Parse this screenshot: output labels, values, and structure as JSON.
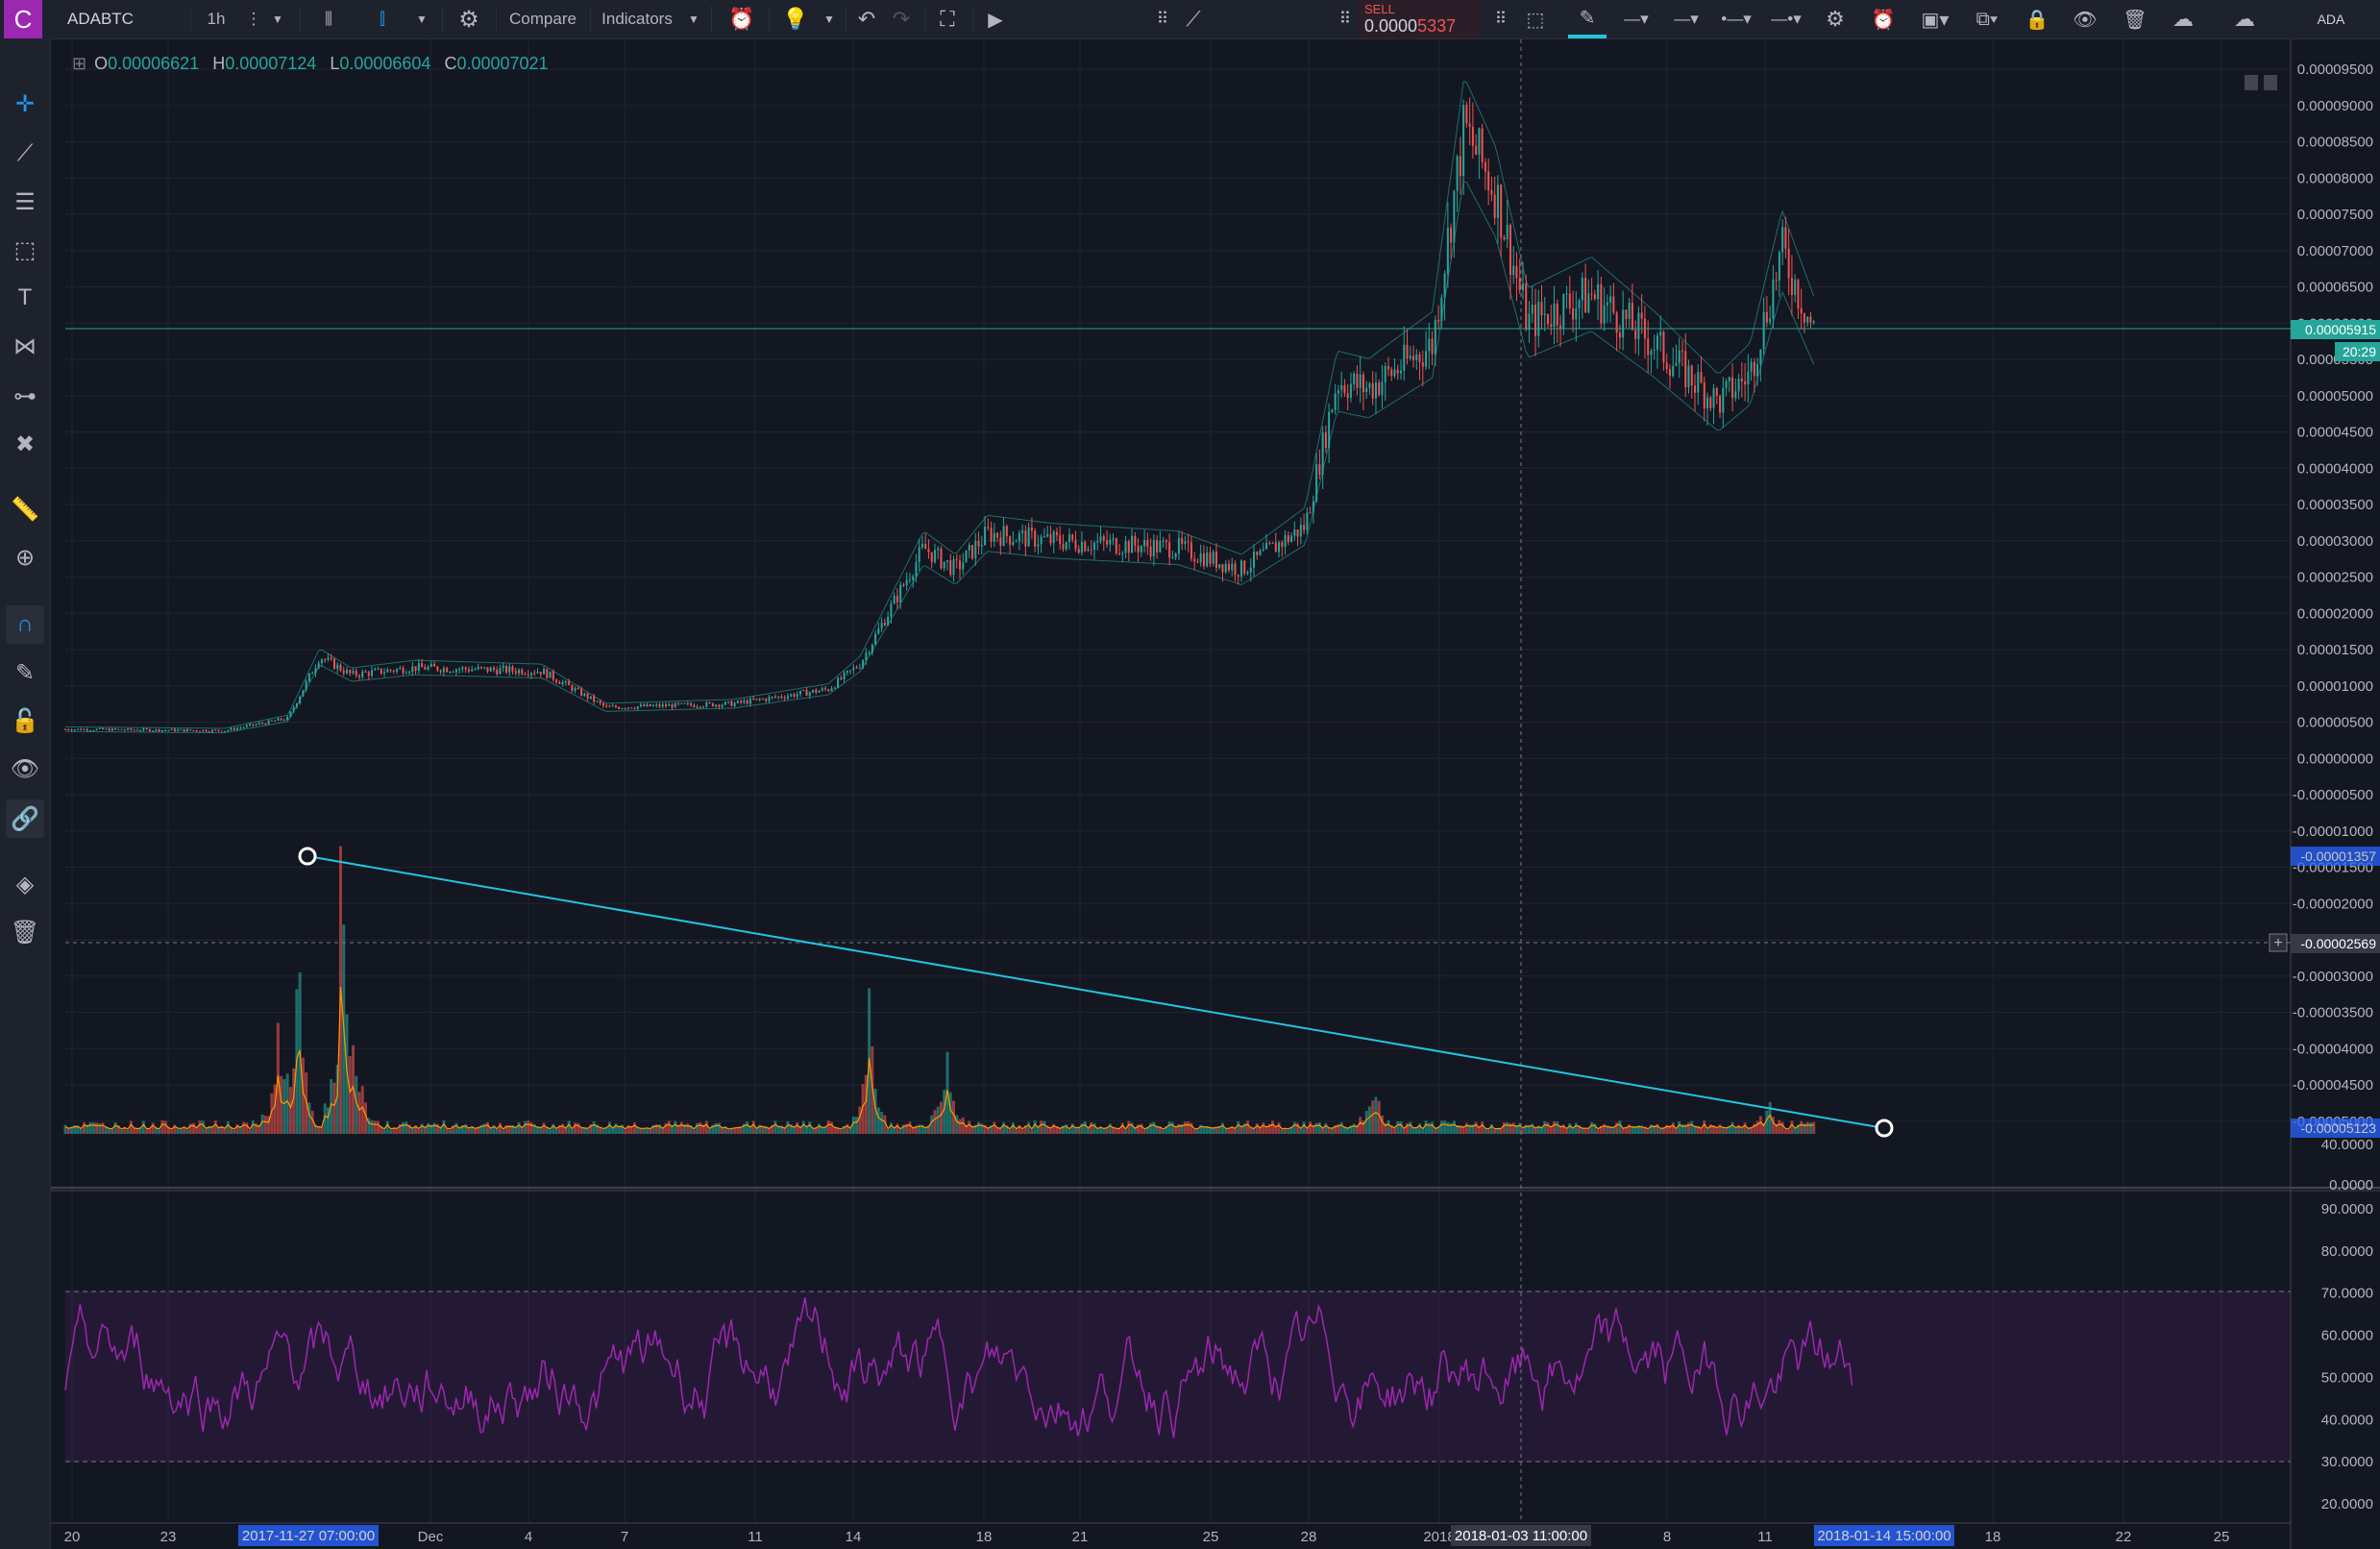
{
  "toolbar": {
    "logo": "C",
    "symbol": "ADABTC",
    "interval": "1h",
    "compare_label": "Compare",
    "indicators_label": "Indicators",
    "sell_label": "SELL",
    "sell_price_main": "0.0000",
    "sell_price_tail": "5337",
    "currency_label": "ADA"
  },
  "ohlc": {
    "o_label": "O",
    "o_value": "0.00006621",
    "h_label": "H",
    "h_value": "0.00007124",
    "l_label": "L",
    "l_value": "0.00006604",
    "c_label": "C",
    "c_value": "0.00007021"
  },
  "price_axis": {
    "ticks": [
      "0.00009500",
      "0.00009000",
      "0.00008500",
      "0.00008000",
      "0.00007500",
      "0.00007000",
      "0.00006500",
      "0.00006000",
      "0.00005500",
      "0.00005000",
      "0.00004500",
      "0.00004000",
      "0.00003500",
      "0.00003000",
      "0.00002500",
      "0.00002000",
      "0.00001500",
      "0.00001000",
      "0.00000500",
      "0.00000000",
      "-0.00000500",
      "-0.00001000",
      "-0.00001500",
      "-0.00002000",
      "-0.00002500",
      "-0.00003000",
      "-0.00003500",
      "-0.00004000",
      "-0.00004500",
      "-0.00005000"
    ],
    "last_price": "0.00005915",
    "countdown": "20:29",
    "crosshair_price": "-0.00002569",
    "trendline_start_price": "-0.00001357",
    "trendline_end_price": "-0.00005123"
  },
  "volume_axis": {
    "ticks": [
      "40.0000",
      "0.0000"
    ]
  },
  "rsi_axis": {
    "ticks": [
      "90.0000",
      "80.0000",
      "70.0000",
      "60.0000",
      "50.0000",
      "40.0000",
      "30.0000",
      "20.0000"
    ]
  },
  "time_axis": {
    "ticks": [
      "20",
      "23",
      "Dec",
      "4",
      "7",
      "11",
      "14",
      "18",
      "21",
      "25",
      "28",
      "2018",
      "8",
      "11",
      "18",
      "22",
      "25"
    ],
    "badge_start": "2017-11-27 07:00:00",
    "badge_cursor": "2018-01-03 11:00:00",
    "badge_end": "2018-01-14 15:00:00"
  },
  "colors": {
    "background": "#131722",
    "up": "#26a69a",
    "down": "#ef5350",
    "trendline": "#22c5e0",
    "rsi": "#9c27b0",
    "accent": "#2196f3"
  },
  "chart_data": {
    "type": "candlestick",
    "symbol": "ADABTC",
    "interval": "1h",
    "x_range": [
      "2017-11-20",
      "2018-01-14"
    ],
    "ylim": [
      -5e-05,
      9.5e-05
    ],
    "price_trend": [
      {
        "date": "2017-11-20",
        "close": 4e-06
      },
      {
        "date": "2017-11-25",
        "close": 3.8e-06
      },
      {
        "date": "2017-11-27",
        "close": 5.5e-06
      },
      {
        "date": "2017-11-28",
        "close": 1.4e-05
      },
      {
        "date": "2017-11-29",
        "close": 1.15e-05
      },
      {
        "date": "2017-12-01",
        "close": 1.25e-05
      },
      {
        "date": "2017-12-05",
        "close": 1.2e-05
      },
      {
        "date": "2017-12-07",
        "close": 7e-06
      },
      {
        "date": "2017-12-11",
        "close": 7.5e-06
      },
      {
        "date": "2017-12-14",
        "close": 9.5e-06
      },
      {
        "date": "2017-12-15",
        "close": 1.3e-05
      },
      {
        "date": "2017-12-17",
        "close": 2.9e-05
      },
      {
        "date": "2017-12-18",
        "close": 2.6e-05
      },
      {
        "date": "2017-12-19",
        "close": 3.1e-05
      },
      {
        "date": "2017-12-21",
        "close": 3e-05
      },
      {
        "date": "2017-12-25",
        "close": 2.9e-05
      },
      {
        "date": "2017-12-27",
        "close": 2.6e-05
      },
      {
        "date": "2017-12-29",
        "close": 3.2e-05
      },
      {
        "date": "2017-12-30",
        "close": 5.2e-05
      },
      {
        "date": "2017-12-31",
        "close": 5.1e-05
      },
      {
        "date": "2018-01-02",
        "close": 5.7e-05
      },
      {
        "date": "2018-01-03",
        "close": 8.7e-05
      },
      {
        "date": "2018-01-04",
        "close": 7.8e-05
      },
      {
        "date": "2018-01-05",
        "close": 6e-05
      },
      {
        "date": "2018-01-07",
        "close": 6.4e-05
      },
      {
        "date": "2018-01-09",
        "close": 5.7e-05
      },
      {
        "date": "2018-01-11",
        "close": 4.9e-05
      },
      {
        "date": "2018-01-12",
        "close": 5.3e-05
      },
      {
        "date": "2018-01-13",
        "close": 7e-05
      },
      {
        "date": "2018-01-14",
        "close": 5.9e-05
      }
    ],
    "rsi_overbought": 70,
    "rsi_oversold": 30,
    "trendline": {
      "from_price": -1.357e-05,
      "to_price": -5.123e-05,
      "from_date": "2017-11-27",
      "to_date": "2018-01-14"
    }
  }
}
